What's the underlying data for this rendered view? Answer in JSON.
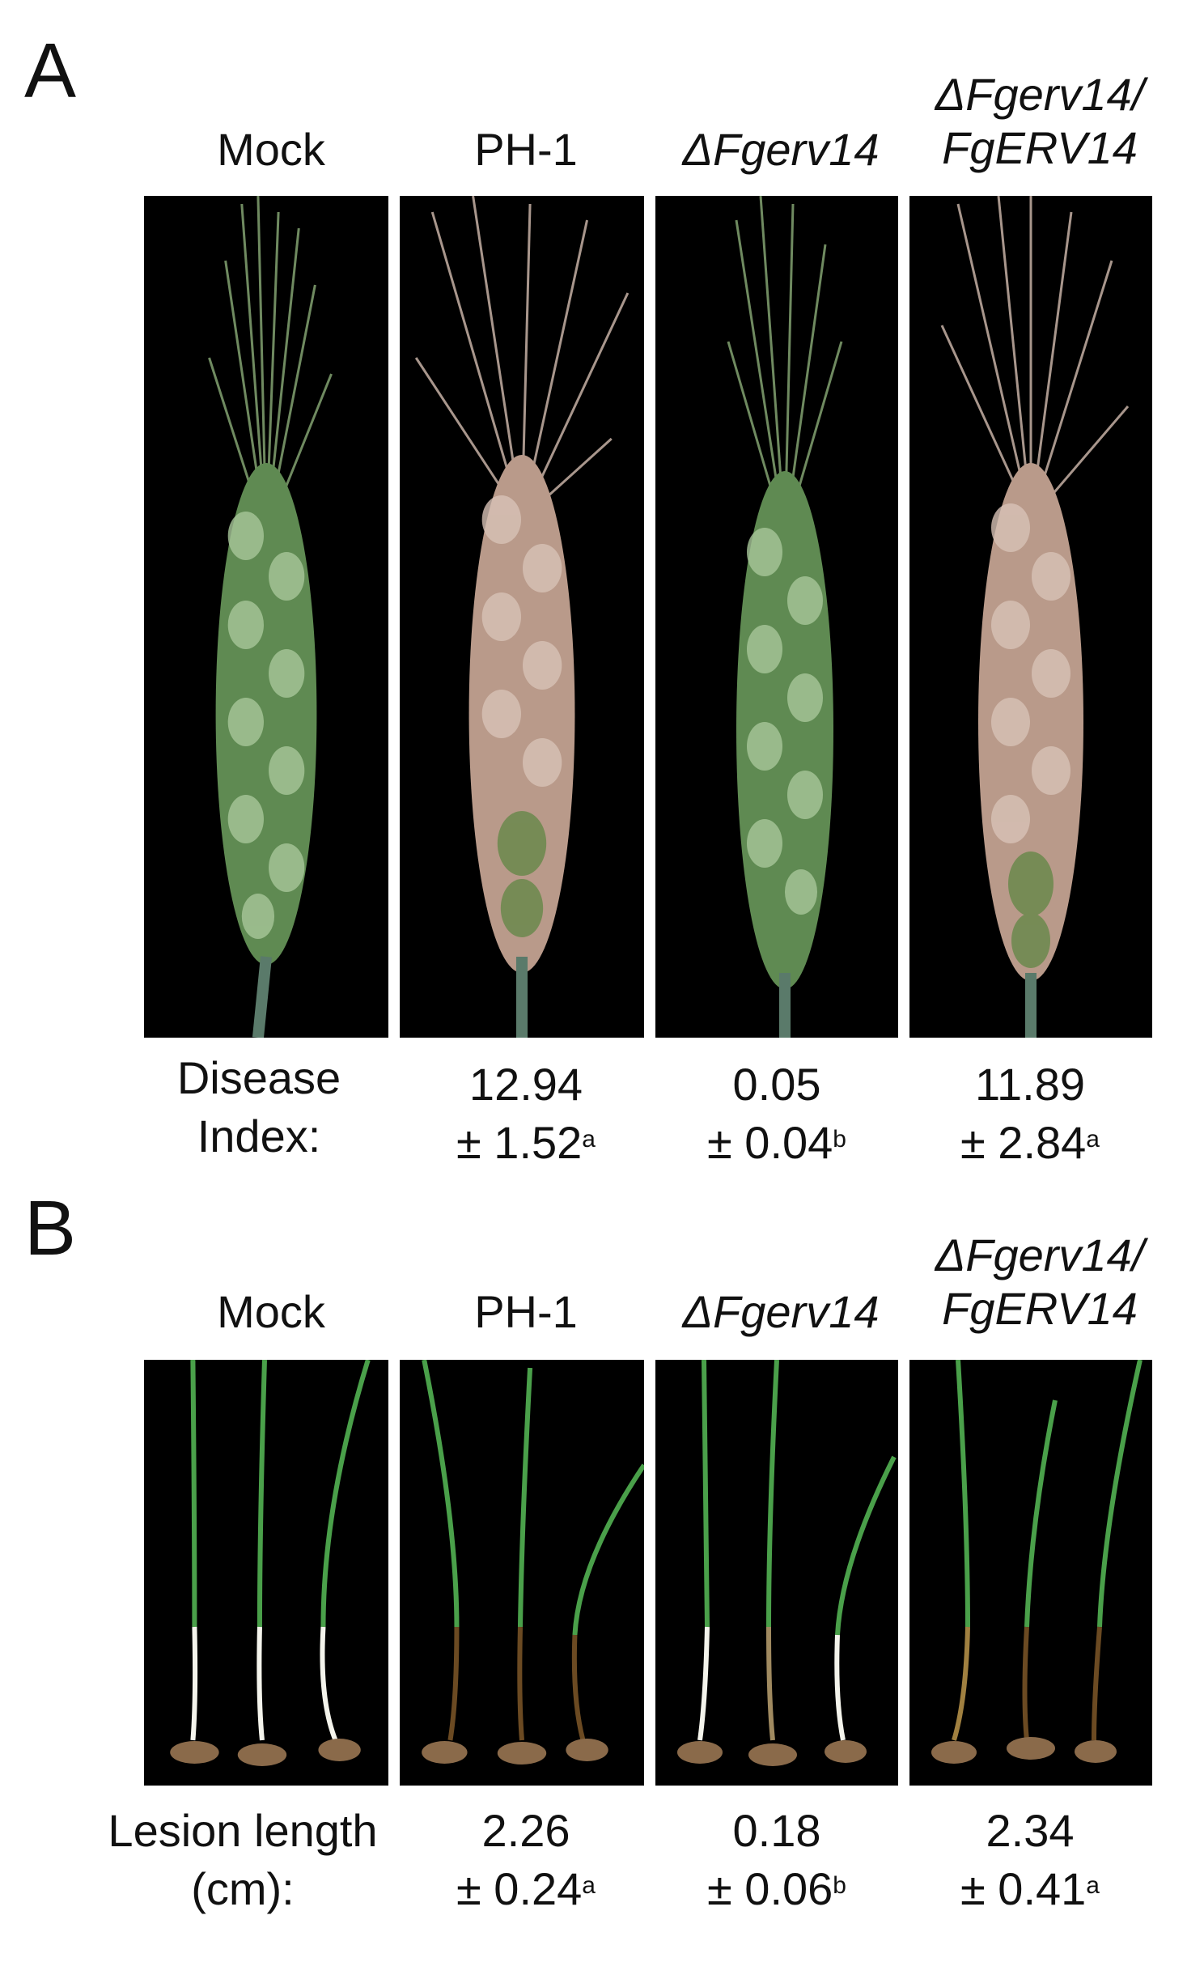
{
  "panel_a": {
    "letter": "A",
    "columns": [
      {
        "label": "Mock",
        "label_line2": ""
      },
      {
        "label": "PH-1",
        "label_line2": ""
      },
      {
        "label": "ΔFgerv14",
        "label_line2": ""
      },
      {
        "label": "ΔFgerv14/",
        "label_line2": "FgERV14"
      }
    ],
    "row_label_line1": "Disease",
    "row_label_line2": "Index:",
    "values": [
      {
        "value": "12.94",
        "error": "± 1.52",
        "group": "a"
      },
      {
        "value": "0.05",
        "error": "± 0.04",
        "group": "b"
      },
      {
        "value": "11.89",
        "error": "± 2.84",
        "group": "a"
      }
    ]
  },
  "panel_b": {
    "letter": "B",
    "columns": [
      {
        "label": "Mock",
        "label_line2": ""
      },
      {
        "label": "PH-1",
        "label_line2": ""
      },
      {
        "label": "ΔFgerv14",
        "label_line2": ""
      },
      {
        "label": "ΔFgerv14/",
        "label_line2": "FgERV14"
      }
    ],
    "row_label_line1": "Lesion length",
    "row_label_line2": "(cm):",
    "values": [
      {
        "value": "2.26",
        "error": "± 0.24",
        "group": "a"
      },
      {
        "value": "0.18",
        "error": "± 0.06",
        "group": "b"
      },
      {
        "value": "2.34",
        "error": "± 0.41",
        "group": "a"
      }
    ]
  },
  "colors": {
    "healthy_spike": "#5f8a52",
    "infected_spike": "#b99a8a",
    "awn_healthy": "#6f8a60",
    "awn_infected": "#a8968c",
    "seedling_green": "#4aa04a",
    "lesion_brown": "#6b4a22",
    "seed": "#8a6a4a"
  }
}
